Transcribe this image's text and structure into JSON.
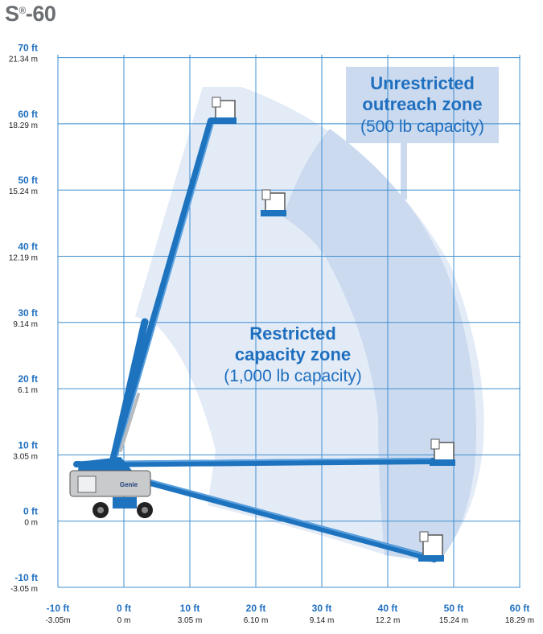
{
  "title": {
    "model": "S",
    "mark": "®",
    "suffix": "-60"
  },
  "colors": {
    "grid": "#3f8fd0",
    "axis_text_ft": "#1f6fbf",
    "axis_text_m": "#222222",
    "boom": "#1e73be",
    "boom_dark": "#0f4f8f",
    "zone_light": "#e4ecf7",
    "zone_dark": "#c9d9ef",
    "zone_text": "#1f6fbf",
    "base_grey": "#c8cacc"
  },
  "y_axis": [
    {
      "ft": "70 ft",
      "m": "21.34 m",
      "value": 70
    },
    {
      "ft": "60 ft",
      "m": "18.29 m",
      "value": 60
    },
    {
      "ft": "50 ft",
      "m": "15.24 m",
      "value": 50
    },
    {
      "ft": "40 ft",
      "m": "12.19 m",
      "value": 40
    },
    {
      "ft": "30 ft",
      "m": "9.14 m",
      "value": 30
    },
    {
      "ft": "20 ft",
      "m": "6.1 m",
      "value": 20
    },
    {
      "ft": "10 ft",
      "m": "3.05 m",
      "value": 10
    },
    {
      "ft": "0 ft",
      "m": "0 m",
      "value": 0
    },
    {
      "ft": "-10 ft",
      "m": "-3.05 m",
      "value": -10
    }
  ],
  "x_axis": [
    {
      "ft": "-10 ft",
      "m": "-3.05m",
      "value": -10
    },
    {
      "ft": "0 ft",
      "m": "0 m",
      "value": 0
    },
    {
      "ft": "10 ft",
      "m": "3.05 m",
      "value": 10
    },
    {
      "ft": "20 ft",
      "m": "6.10 m",
      "value": 20
    },
    {
      "ft": "30 ft",
      "m": "9.14 m",
      "value": 30
    },
    {
      "ft": "40 ft",
      "m": "12.2 m",
      "value": 40
    },
    {
      "ft": "50 ft",
      "m": "15.24 m",
      "value": 50
    },
    {
      "ft": "60 ft",
      "m": "18.29 m",
      "value": 60
    }
  ],
  "unrestricted_zone": {
    "line1": "Unrestricted",
    "line2": "outreach zone",
    "line3": "(500 lb capacity)"
  },
  "restricted_zone": {
    "line1": "Restricted",
    "line2": "capacity zone",
    "line3": "(1,000 lb capacity)"
  },
  "machine_brand": "Genie"
}
